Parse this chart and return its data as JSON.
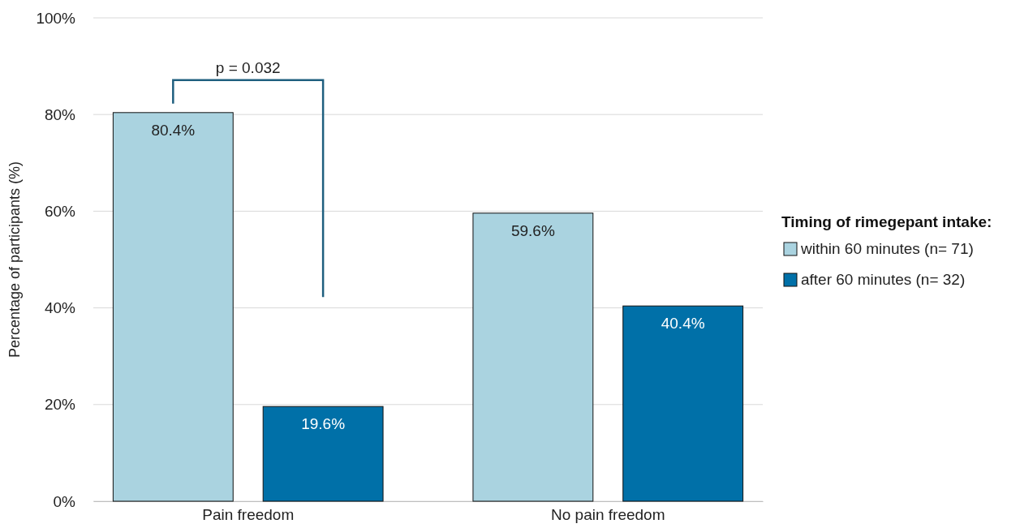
{
  "chart_data": {
    "type": "bar",
    "ylabel": "Percentage of participants (%)",
    "legend_title": "Timing of rimegepant intake:",
    "categories": [
      "Pain freedom",
      "No pain freedom"
    ],
    "series": [
      {
        "name": "within 60 minutes (n= 71)",
        "color": "#aad3e0",
        "values": [
          80.4,
          59.6
        ],
        "value_labels": [
          "80.4%",
          "59.6%"
        ]
      },
      {
        "name": "after 60 minutes (n= 32)",
        "color": "#0070a8",
        "values": [
          19.6,
          40.4
        ],
        "value_labels": [
          "19.6%",
          "40.4%"
        ]
      }
    ],
    "ylim": [
      0,
      100
    ],
    "yticks": [
      {
        "value": 0,
        "label": "0%"
      },
      {
        "value": 20,
        "label": "20%"
      },
      {
        "value": 40,
        "label": "40%"
      },
      {
        "value": 60,
        "label": "60%"
      },
      {
        "value": 80,
        "label": "80%"
      },
      {
        "value": 100,
        "label": "100%"
      }
    ],
    "grid": "y",
    "legend": "right",
    "annotations": [
      "p = 0.032"
    ]
  }
}
